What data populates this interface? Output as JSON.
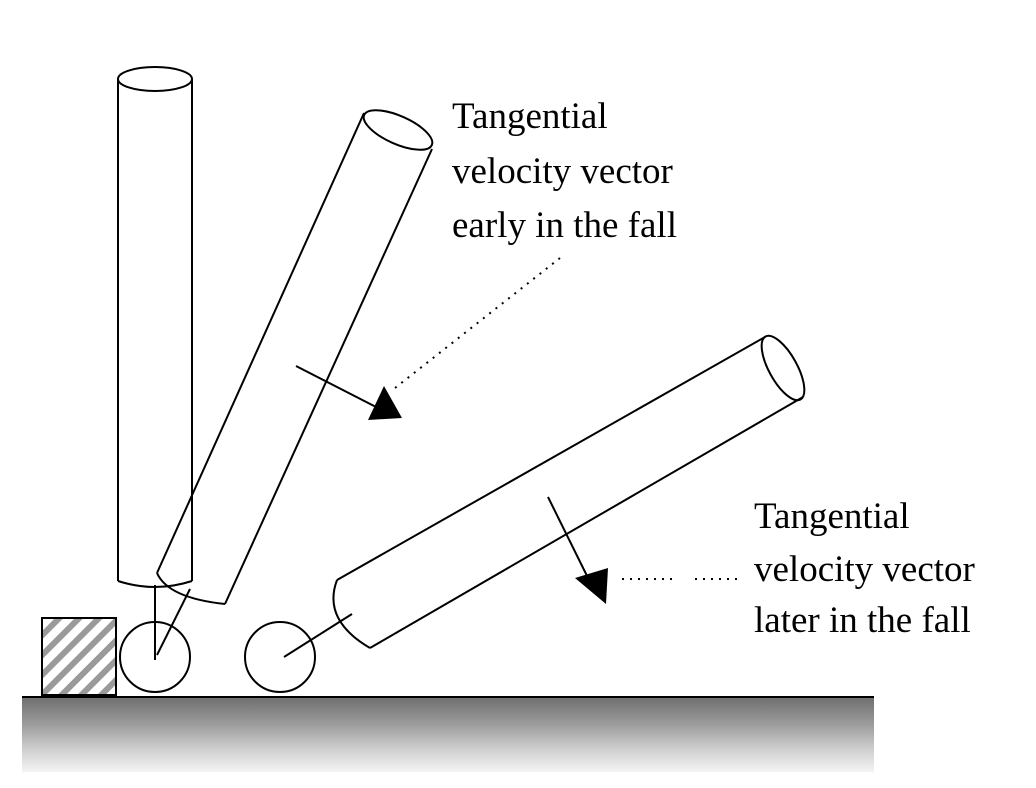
{
  "labels": {
    "early_line1": "Tangential",
    "early_line2": "velocity vector",
    "early_line3": "early in the fall",
    "late_line1": "Tangential",
    "late_line2": "velocity vector",
    "late_line3": "later in the fall"
  },
  "colors": {
    "stroke": "#000000",
    "background": "#ffffff",
    "ground_top": "#7a7a7a",
    "ground_bottom": "#f0f0f0",
    "block_hatch": "#999999"
  }
}
